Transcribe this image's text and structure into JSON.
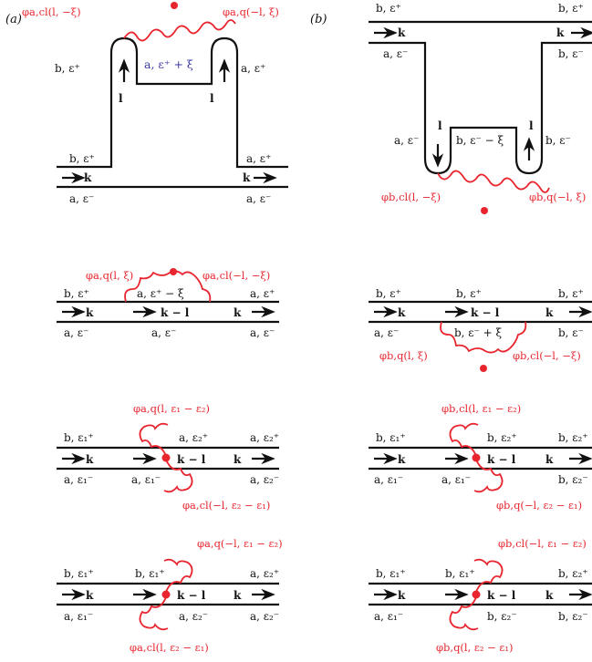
{
  "panel_labels": {
    "a": "(a)",
    "b": "(b)"
  },
  "labels": {
    "b_ep": "b, ε⁺",
    "a_em": "a, ε⁻",
    "a_ep": "a, ε⁺",
    "b_em": "b, ε⁻",
    "k": "k",
    "l": "l",
    "kl": "k − l",
    "a_ep_plus_xi": "a, ε⁺ + ξ",
    "b_em_minus_xi": "b, ε⁻ − ξ",
    "a_ep_minus_xi": "a, ε⁺ − ξ",
    "b_em_plus_xi": "b, ε⁻ + ξ",
    "b_e1p": "b, ε₁⁺",
    "a_e1m": "a, ε₁⁻",
    "a_e2p": "a, ε₂⁺",
    "a_e2m": "a, ε₂⁻",
    "b_e2p": "b, ε₂⁺",
    "b_e2m": "b, ε₂⁻"
  },
  "red_labels": {
    "top_a_left": "φa,cl(l, −ξ)",
    "top_a_right": "φa,q(−l, ξ)",
    "top_b_left": "φb,cl(l, −ξ)",
    "top_b_right": "φb,q(−l, ξ)",
    "mid_a_left": "φa,q(l, ξ)",
    "mid_a_right": "φa,cl(−l, −ξ)",
    "mid_b_left": "φb,q(l, ξ)",
    "mid_b_right": "φb,cl(−l, −ξ)",
    "r3_a_top": "φa,q(l, ε₁ − ε₂)",
    "r3_a_bot": "φa,cl(−l, ε₂ − ε₁)",
    "r3_b_top": "φb,cl(l, ε₁ − ε₂)",
    "r3_b_bot": "φb,q(−l, ε₂ − ε₁)",
    "r4_a_top": "φa,q(−l, ε₁ − ε₂)",
    "r4_a_bot": "φa,cl(l, ε₂ − ε₁)",
    "r4_b_top": "φb,cl(−l, ε₁ − ε₂)",
    "r4_b_bot": "φb,q(l, ε₂ − ε₁)"
  }
}
